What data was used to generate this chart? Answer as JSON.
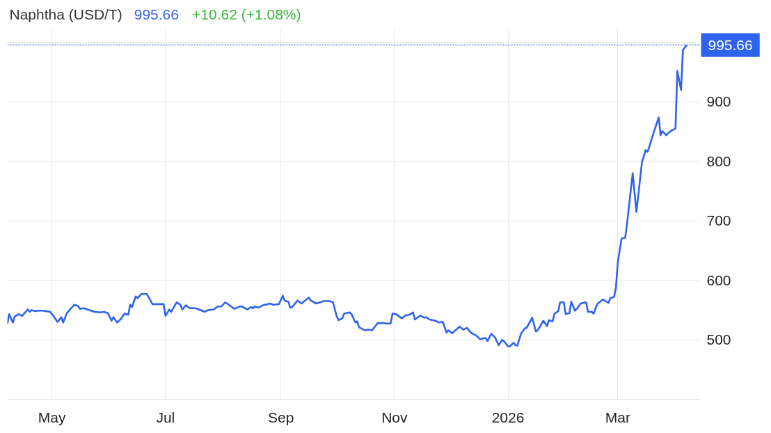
{
  "chart_data": {
    "type": "line",
    "title": "Naphtha (USD/T)",
    "annotations": [
      "995.66",
      "+10.62 (+1.08%)"
    ],
    "x": [
      "2025-04-07",
      "2025-04-08",
      "2025-04-10",
      "2025-04-11",
      "2025-04-13",
      "2025-04-15",
      "2025-04-16",
      "2025-04-18",
      "2025-04-19",
      "2025-04-20",
      "2025-04-22",
      "2025-04-24",
      "2025-04-26",
      "2025-04-30",
      "2025-05-02",
      "2025-05-04",
      "2025-05-06",
      "2025-05-07",
      "2025-05-09",
      "2025-05-11",
      "2025-05-13",
      "2025-05-15",
      "2025-05-16",
      "2025-05-18",
      "2025-05-20",
      "2025-05-24",
      "2025-05-27",
      "2025-05-29",
      "2025-05-31",
      "2025-06-02",
      "2025-06-03",
      "2025-06-05",
      "2025-06-07",
      "2025-06-09",
      "2025-06-11",
      "2025-06-12",
      "2025-06-13",
      "2025-06-15",
      "2025-06-16",
      "2025-06-18",
      "2025-06-21",
      "2025-06-24",
      "2025-06-30",
      "2025-07-01",
      "2025-07-03",
      "2025-07-04",
      "2025-07-07",
      "2025-07-09",
      "2025-07-10",
      "2025-07-12",
      "2025-07-14",
      "2025-07-17",
      "2025-07-19",
      "2025-07-22",
      "2025-07-24",
      "2025-07-27",
      "2025-07-29",
      "2025-07-31",
      "2025-08-02",
      "2025-08-04",
      "2025-08-07",
      "2025-08-10",
      "2025-08-11",
      "2025-08-14",
      "2025-08-16",
      "2025-08-17",
      "2025-08-18",
      "2025-08-20",
      "2025-08-23",
      "2025-08-24",
      "2025-08-26",
      "2025-08-28",
      "2025-08-31",
      "2025-09-02",
      "2025-09-03",
      "2025-09-05",
      "2025-09-06",
      "2025-09-07",
      "2025-09-10",
      "2025-09-12",
      "2025-09-16",
      "2025-09-17",
      "2025-09-20",
      "2025-09-24",
      "2025-09-27",
      "2025-09-29",
      "2025-10-01",
      "2025-10-02",
      "2025-10-04",
      "2025-10-05",
      "2025-10-08",
      "2025-10-09",
      "2025-10-11",
      "2025-10-12",
      "2025-10-13",
      "2025-10-16",
      "2025-10-18",
      "2025-10-20",
      "2025-10-21",
      "2025-10-23",
      "2025-10-26",
      "2025-10-29",
      "2025-10-30",
      "2025-10-31",
      "2025-11-02",
      "2025-11-05",
      "2025-11-07",
      "2025-11-09",
      "2025-11-11",
      "2025-11-12",
      "2025-11-15",
      "2025-11-17",
      "2025-11-18",
      "2025-11-20",
      "2025-11-23",
      "2025-11-25",
      "2025-11-27",
      "2025-11-29",
      "2025-11-30",
      "2025-12-02",
      "2025-12-06",
      "2025-12-08",
      "2025-12-10",
      "2025-12-12",
      "2025-12-15",
      "2025-12-17",
      "2025-12-18",
      "2025-12-20",
      "2025-12-21",
      "2025-12-23",
      "2025-12-25",
      "2025-12-27",
      "2025-12-29",
      "2025-12-30",
      "2026-01-01",
      "2026-01-02",
      "2026-01-04",
      "2026-01-05",
      "2026-01-06",
      "2026-01-08",
      "2026-01-10",
      "2026-01-11",
      "2026-01-14",
      "2026-01-16",
      "2026-01-17",
      "2026-01-20",
      "2026-01-22",
      "2026-01-23",
      "2026-01-25",
      "2026-01-26",
      "2026-01-28",
      "2026-01-29",
      "2026-01-31",
      "2026-02-01",
      "2026-02-03",
      "2026-02-04",
      "2026-02-06",
      "2026-02-07",
      "2026-02-09",
      "2026-02-12",
      "2026-02-13",
      "2026-02-15",
      "2026-02-16",
      "2026-02-18",
      "2026-02-21",
      "2026-02-24",
      "2026-02-25",
      "2026-02-27",
      "2026-02-28",
      "2026-03-01",
      "2026-03-03",
      "2026-03-05",
      "2026-03-06",
      "2026-03-09",
      "2026-03-11",
      "2026-03-14",
      "2026-03-16",
      "2026-03-17",
      "2026-03-18",
      "2026-03-20",
      "2026-03-23",
      "2026-03-24",
      "2026-03-25",
      "2026-03-27",
      "2026-03-29",
      "2026-03-30",
      "2026-04-01",
      "2026-04-02",
      "2026-04-04",
      "2026-04-05",
      "2026-04-07"
    ],
    "series": [
      {
        "color": "#2f63ee",
        "values": [
          527,
          543,
          529,
          539,
          543,
          540,
          544,
          551,
          547,
          550,
          548,
          549,
          549,
          547,
          539,
          530,
          538,
          529,
          545,
          552,
          559,
          557,
          552,
          553,
          551,
          547,
          546,
          547,
          545,
          532,
          538,
          529,
          535,
          544,
          542,
          559,
          555,
          573,
          570,
          577,
          577,
          560,
          560,
          540,
          551,
          547,
          563,
          559,
          551,
          558,
          553,
          553,
          551,
          547,
          550,
          551,
          556,
          556,
          563,
          559,
          552,
          556,
          556,
          551,
          555,
          553,
          556,
          554,
          559,
          559,
          561,
          559,
          560,
          574,
          566,
          564,
          554,
          555,
          566,
          561,
          571,
          566,
          561,
          565,
          565,
          563,
          539,
          533,
          536,
          544,
          546,
          543,
          529,
          531,
          521,
          516,
          517,
          516,
          520,
          528,
          528,
          527,
          528,
          544,
          543,
          536,
          541,
          542,
          546,
          534,
          541,
          537,
          538,
          534,
          532,
          529,
          530,
          512,
          516,
          511,
          522,
          517,
          520,
          512,
          507,
          501,
          502,
          503,
          498,
          510,
          504,
          491,
          500,
          497,
          489,
          489,
          495,
          491,
          490,
          510,
          519,
          520,
          537,
          514,
          516,
          532,
          523,
          533,
          531,
          544,
          548,
          563,
          563,
          543,
          545,
          564,
          549,
          552,
          561,
          563,
          547,
          547,
          544,
          560,
          568,
          562,
          570,
          572,
          588,
          630,
          670,
          672,
          696,
          780,
          715,
          799,
          819,
          816,
          825,
          846,
          874,
          844,
          851,
          844,
          850,
          852,
          855,
          952,
          920,
          987,
          995.66
        ]
      }
    ],
    "xlim": [
      "2025-04-07",
      "2026-04-14"
    ],
    "ylim": [
      400,
      1024
    ],
    "xticks": [
      {
        "value": "2025-05-01",
        "label": "May"
      },
      {
        "value": "2025-07-01",
        "label": "Jul"
      },
      {
        "value": "2025-09-01",
        "label": "Sep"
      },
      {
        "value": "2025-11-01",
        "label": "Nov"
      },
      {
        "value": "2026-01-01",
        "label": "2026"
      },
      {
        "value": "2026-03-01",
        "label": "Mar"
      }
    ],
    "yticks": [
      500,
      600,
      700,
      800,
      900
    ],
    "ref_lines": [
      {
        "axis": "y",
        "value": 995.66,
        "label": "995.66",
        "color": "#2f63ee",
        "line_style": "dotted"
      }
    ],
    "grid": true
  }
}
